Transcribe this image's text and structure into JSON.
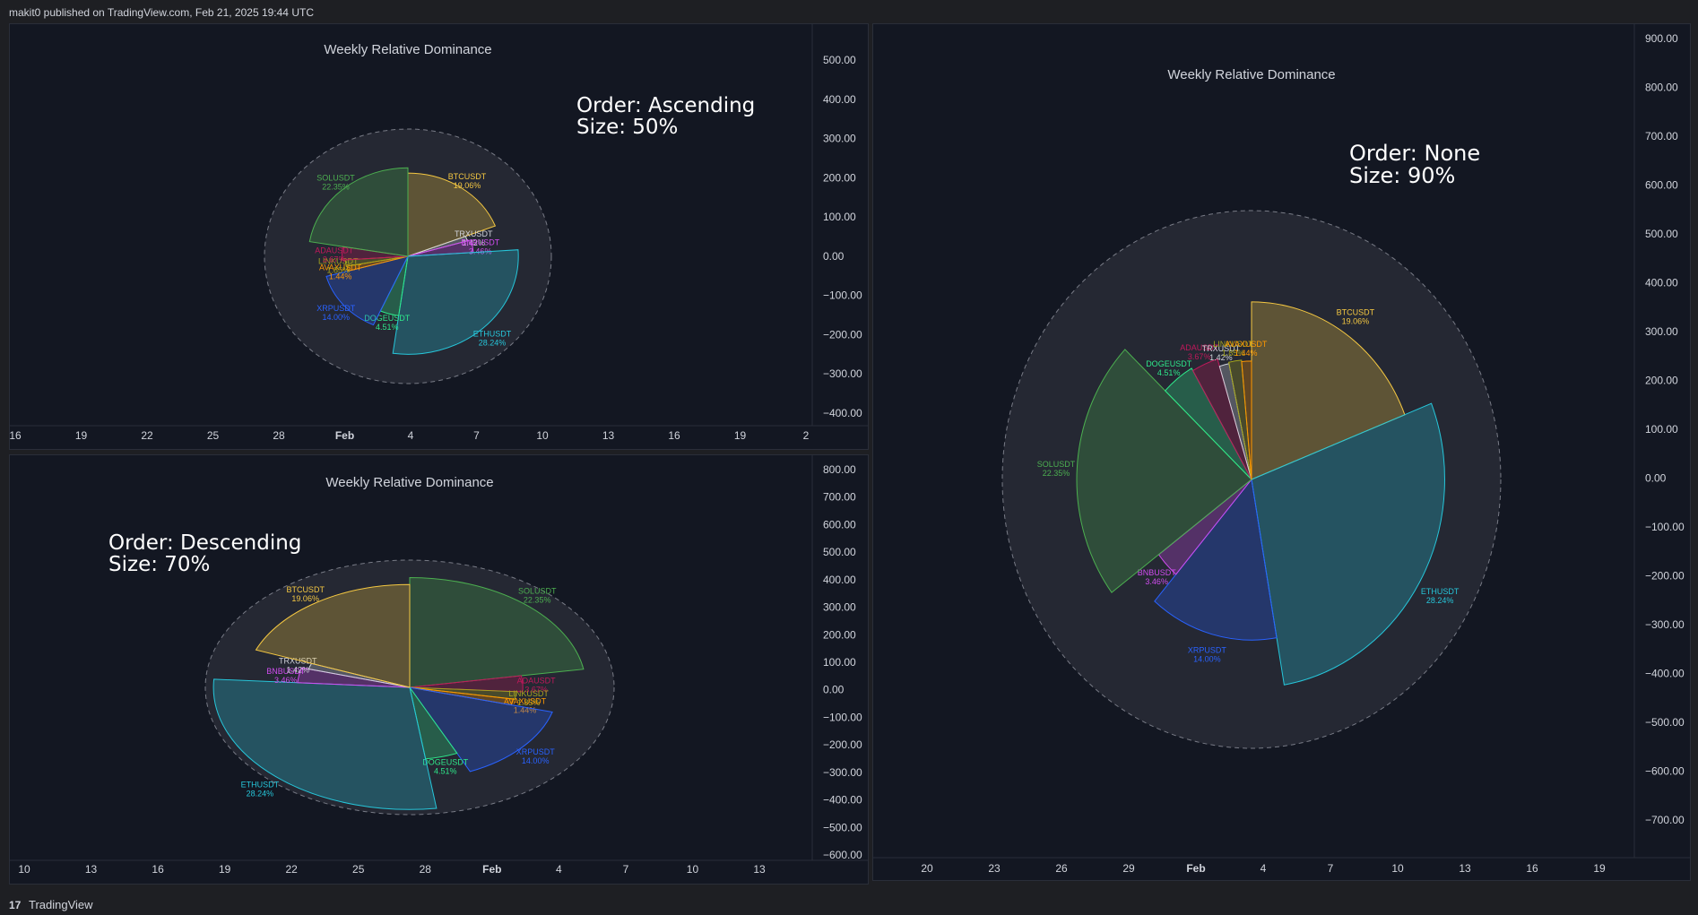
{
  "header": {
    "publisher": "makit0 published on TradingView.com, Feb 21, 2025 19:44 UTC"
  },
  "footer": {
    "logo": "17",
    "brand": "TradingView"
  },
  "chart_data": [
    {
      "id": "panel-a",
      "type": "pie",
      "title": "Weekly Relative Dominance",
      "annotation_lines": [
        "Order: Ascending",
        "Size: 50%"
      ],
      "order": "ascending",
      "slices": [
        {
          "label": "BTCUSDT",
          "value": 19.06,
          "value_label": "19.06%",
          "color": "#f5c842"
        },
        {
          "label": "TRXUSDT",
          "value": 1.42,
          "value_label": "1.42%",
          "color": "#d1d4dc"
        },
        {
          "label": "BNBUSDT",
          "value": 3.46,
          "value_label": "3.46%",
          "color": "#d14cf0"
        },
        {
          "label": "ETHUSDT",
          "value": 28.24,
          "value_label": "28.24%",
          "color": "#26c6da"
        },
        {
          "label": "DOGEUSDT",
          "value": 4.51,
          "value_label": "4.51%",
          "color": "#2ee88a"
        },
        {
          "label": "XRPUSDT",
          "value": 14.0,
          "value_label": "14.00%",
          "color": "#2962ff"
        },
        {
          "label": "AVAXUSDT",
          "value": 1.44,
          "value_label": "1.44%",
          "color": "#ff9800"
        },
        {
          "label": "LINKUSDT",
          "value": 1.85,
          "value_label": "1.85%",
          "color": "#a5a51e"
        },
        {
          "label": "ADAUSDT",
          "value": 3.67,
          "value_label": "3.67%",
          "color": "#c2185b"
        },
        {
          "label": "SOLUSDT",
          "value": 22.35,
          "value_label": "22.35%",
          "color": "#4caf50"
        }
      ],
      "y_ticks": [
        "500.00",
        "400.00",
        "300.00",
        "200.00",
        "100.00",
        "0.00",
        "−100.00",
        "−200.00",
        "−300.00",
        "−400.00"
      ],
      "x_ticks": [
        "16",
        "19",
        "22",
        "25",
        "28",
        "Feb",
        "4",
        "7",
        "10",
        "13",
        "16",
        "19",
        "2"
      ]
    },
    {
      "id": "panel-b",
      "type": "pie",
      "title": "Weekly Relative Dominance",
      "annotation_lines": [
        "Order: Descending",
        "Size: 70%"
      ],
      "order": "descending",
      "slices": [
        {
          "label": "SOLUSDT",
          "value": 22.35,
          "value_label": "22.35%",
          "color": "#4caf50"
        },
        {
          "label": "ADAUSDT",
          "value": 3.67,
          "value_label": "3.67%",
          "color": "#c2185b"
        },
        {
          "label": "LINKUSDT",
          "value": 1.85,
          "value_label": "1.85%",
          "color": "#a5a51e"
        },
        {
          "label": "AVAXUSDT",
          "value": 1.44,
          "value_label": "1.44%",
          "color": "#ff9800"
        },
        {
          "label": "XRPUSDT",
          "value": 14.0,
          "value_label": "14.00%",
          "color": "#2962ff"
        },
        {
          "label": "DOGEUSDT",
          "value": 4.51,
          "value_label": "4.51%",
          "color": "#2ee88a"
        },
        {
          "label": "ETHUSDT",
          "value": 28.24,
          "value_label": "28.24%",
          "color": "#26c6da"
        },
        {
          "label": "BNBUSDT",
          "value": 3.46,
          "value_label": "3.46%",
          "color": "#d14cf0"
        },
        {
          "label": "TRXUSDT",
          "value": 1.42,
          "value_label": "1.42%",
          "color": "#d1d4dc"
        },
        {
          "label": "BTCUSDT",
          "value": 19.06,
          "value_label": "19.06%",
          "color": "#f5c842"
        }
      ],
      "y_ticks": [
        "800.00",
        "700.00",
        "600.00",
        "500.00",
        "400.00",
        "300.00",
        "200.00",
        "100.00",
        "0.00",
        "−100.00",
        "−200.00",
        "−300.00",
        "−400.00",
        "−500.00",
        "−600.00"
      ],
      "x_ticks": [
        "10",
        "13",
        "16",
        "19",
        "22",
        "25",
        "28",
        "Feb",
        "4",
        "7",
        "10",
        "13"
      ]
    },
    {
      "id": "panel-c",
      "type": "pie",
      "title": "Weekly Relative Dominance",
      "annotation_lines": [
        "Order: None",
        "Size: 90%"
      ],
      "order": "none",
      "slices": [
        {
          "label": "BTCUSDT",
          "value": 19.06,
          "value_label": "19.06%",
          "color": "#f5c842"
        },
        {
          "label": "ETHUSDT",
          "value": 28.24,
          "value_label": "28.24%",
          "color": "#26c6da"
        },
        {
          "label": "XRPUSDT",
          "value": 14.0,
          "value_label": "14.00%",
          "color": "#2962ff"
        },
        {
          "label": "BNBUSDT",
          "value": 3.46,
          "value_label": "3.46%",
          "color": "#d14cf0"
        },
        {
          "label": "SOLUSDT",
          "value": 22.35,
          "value_label": "22.35%",
          "color": "#4caf50"
        },
        {
          "label": "DOGEUSDT",
          "value": 4.51,
          "value_label": "4.51%",
          "color": "#2ee88a"
        },
        {
          "label": "ADAUSDT",
          "value": 3.67,
          "value_label": "3.67%",
          "color": "#c2185b"
        },
        {
          "label": "TRXUSDT",
          "value": 1.42,
          "value_label": "1.42%",
          "color": "#d1d4dc"
        },
        {
          "label": "LINKUSDT",
          "value": 1.85,
          "value_label": "1.85%",
          "color": "#a5a51e"
        },
        {
          "label": "AVAXUSDT",
          "value": 1.44,
          "value_label": "1.44%",
          "color": "#ff9800"
        }
      ],
      "y_ticks": [
        "900.00",
        "800.00",
        "700.00",
        "600.00",
        "500.00",
        "400.00",
        "300.00",
        "200.00",
        "100.00",
        "0.00",
        "−100.00",
        "−200.00",
        "−300.00",
        "−400.00",
        "−500.00",
        "−600.00",
        "−700.00"
      ],
      "x_ticks": [
        "20",
        "23",
        "26",
        "29",
        "Feb",
        "4",
        "7",
        "10",
        "13",
        "16",
        "19"
      ]
    }
  ]
}
